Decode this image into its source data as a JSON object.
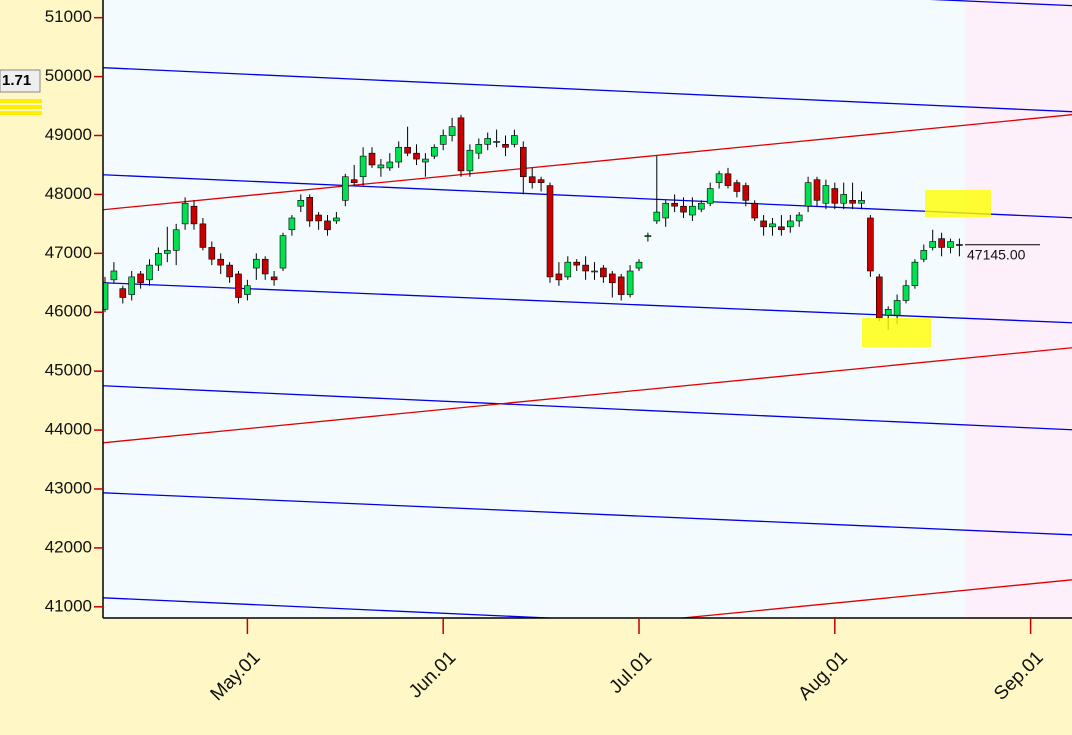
{
  "chart_data": {
    "type": "candlestick",
    "categories": [
      null,
      null,
      null,
      null,
      null,
      null,
      null,
      null,
      null,
      null,
      null,
      null,
      null,
      null,
      null,
      null,
      "May.01",
      null,
      null,
      null,
      null,
      null,
      null,
      null,
      null,
      null,
      null,
      null,
      null,
      null,
      null,
      null,
      null,
      null,
      null,
      null,
      null,
      null,
      "Jun.01",
      null,
      null,
      null,
      null,
      null,
      null,
      null,
      null,
      null,
      null,
      null,
      null,
      null,
      null,
      null,
      null,
      null,
      null,
      null,
      null,
      null,
      "Jul.01",
      null,
      null,
      null,
      null,
      null,
      null,
      null,
      null,
      null,
      null,
      null,
      null,
      null,
      null,
      null,
      null,
      null,
      null,
      null,
      null,
      null,
      "Aug.01",
      null,
      null,
      null,
      null,
      null,
      null,
      null,
      null,
      null,
      null,
      null,
      null,
      null,
      null,
      null,
      null,
      null,
      null,
      null,
      null,
      null,
      "Sep.01",
      null,
      null,
      null
    ],
    "open": [
      46050,
      46550,
      46400,
      46300,
      46650,
      46550,
      46800,
      47000,
      47050,
      47500,
      47800,
      47500,
      47100,
      46900,
      46800,
      46650,
      46300,
      46750,
      46900,
      46600,
      46750,
      47400,
      47800,
      47950,
      47650,
      47550,
      47550,
      47900,
      48250,
      48300,
      48700,
      48450,
      48450,
      48550,
      48800,
      48700,
      48550,
      48650,
      48850,
      49000,
      49300,
      48400,
      48700,
      48850,
      48900,
      48850,
      48850,
      48800,
      48300,
      48250,
      48150,
      46650,
      46600,
      46850,
      46800,
      46700,
      46750,
      46650,
      46600,
      46300,
      46750,
      47300,
      47550,
      47600,
      47850,
      47800,
      47650,
      47750,
      47850,
      48200,
      48350,
      48200,
      48150,
      47850,
      47550,
      47450,
      47450,
      47450,
      47550,
      47800,
      48250,
      47850,
      48100,
      47850,
      47900,
      47850,
      47600,
      46600,
      45950,
      45950,
      46200,
      46450,
      46900,
      47100,
      47250,
      47100,
      47150,
      null,
      null,
      null,
      null,
      null,
      null,
      null,
      null,
      null,
      null,
      null
    ],
    "high": [
      46600,
      46850,
      46450,
      46700,
      46700,
      46900,
      47100,
      47450,
      47500,
      47950,
      47900,
      47600,
      47200,
      47000,
      46850,
      46700,
      46550,
      47000,
      46950,
      46700,
      47350,
      47650,
      48000,
      48000,
      47700,
      47650,
      47700,
      48350,
      48500,
      48800,
      48800,
      48600,
      48700,
      48900,
      49150,
      48850,
      48700,
      48850,
      49100,
      49300,
      49350,
      48850,
      48950,
      49050,
      49100,
      49000,
      49100,
      48900,
      48450,
      48300,
      48200,
      46850,
      46950,
      46900,
      46950,
      46850,
      46800,
      46700,
      46650,
      46800,
      46900,
      47350,
      48650,
      47900,
      48000,
      47950,
      47950,
      47900,
      48200,
      48400,
      48450,
      48250,
      48200,
      47900,
      47650,
      47600,
      47650,
      47650,
      47700,
      48300,
      48300,
      48250,
      48200,
      48200,
      48200,
      48050,
      47650,
      46650,
      46100,
      46300,
      46550,
      46900,
      47150,
      47400,
      47350,
      47250,
      47250,
      null,
      null,
      null,
      null,
      null,
      null,
      null,
      null,
      null,
      null,
      null
    ],
    "low": [
      46000,
      46500,
      46150,
      46200,
      46400,
      46450,
      46700,
      46850,
      46800,
      47400,
      47400,
      47050,
      46800,
      46650,
      46500,
      46150,
      46200,
      46550,
      46550,
      46450,
      46700,
      47300,
      47700,
      47450,
      47400,
      47300,
      47500,
      47800,
      48150,
      48150,
      48450,
      48300,
      48400,
      48450,
      48650,
      48500,
      48300,
      48600,
      48750,
      48900,
      48300,
      48300,
      48600,
      48750,
      48800,
      48650,
      48800,
      48000,
      48100,
      48050,
      46500,
      46450,
      46550,
      46700,
      46550,
      46550,
      46500,
      46250,
      46200,
      46250,
      46700,
      47200,
      47500,
      47450,
      47700,
      47600,
      47550,
      47700,
      47800,
      48100,
      48100,
      47950,
      47800,
      47550,
      47300,
      47300,
      47300,
      47350,
      47450,
      47700,
      47800,
      47750,
      47750,
      47750,
      47750,
      47750,
      46600,
      45850,
      45700,
      45800,
      46150,
      46400,
      46850,
      47050,
      46950,
      47000,
      46950,
      null,
      null,
      null,
      null,
      null,
      null,
      null,
      null,
      null,
      null,
      null
    ],
    "close": [
      46500,
      46700,
      46250,
      46600,
      46500,
      46800,
      47000,
      47050,
      47400,
      47850,
      47500,
      47100,
      46900,
      46800,
      46600,
      46250,
      46450,
      46900,
      46650,
      46550,
      47300,
      47600,
      47900,
      47550,
      47550,
      47400,
      47600,
      48300,
      48200,
      48650,
      48500,
      48500,
      48550,
      48800,
      48700,
      48600,
      48600,
      48800,
      49000,
      49150,
      48400,
      48750,
      48850,
      48950,
      48900,
      48800,
      49000,
      48300,
      48200,
      48200,
      46600,
      46550,
      46850,
      46800,
      46700,
      46700,
      46600,
      46500,
      46300,
      46700,
      46850,
      47300,
      47700,
      47850,
      47800,
      47700,
      47800,
      47850,
      48100,
      48350,
      48150,
      48050,
      47900,
      47600,
      47450,
      47500,
      47400,
      47550,
      47650,
      48200,
      47900,
      48150,
      47850,
      48000,
      47850,
      47900,
      46700,
      45900,
      46050,
      46200,
      46450,
      46850,
      47050,
      47200,
      47100,
      47200,
      47145,
      null,
      null,
      null,
      null,
      null,
      null,
      null,
      null,
      null,
      null,
      null
    ],
    "up_color": "#00e050",
    "down_color": "#c80000",
    "ylim": [
      40810,
      51300
    ],
    "yticks": [
      41000,
      42000,
      43000,
      44000,
      45000,
      46000,
      47000,
      48000,
      49000,
      50000,
      51000
    ],
    "trendlines": [
      {
        "color": "#0000e0",
        "start": 51934,
        "end": 51204
      },
      {
        "color": "#0000e0",
        "start": 50151,
        "end": 49404
      },
      {
        "color": "#0000e0",
        "start": 48334,
        "end": 47604
      },
      {
        "color": "#0000e0",
        "start": 46501,
        "end": 45822
      },
      {
        "color": "#0000e0",
        "start": 44752,
        "end": 44005
      },
      {
        "color": "#0000e0",
        "start": 42935,
        "end": 42222
      },
      {
        "color": "#0000e0",
        "start": 41153,
        "end": 40406
      },
      {
        "color": "#e00000",
        "start": 47740,
        "end": 49353
      },
      {
        "color": "#e00000",
        "start": 43784,
        "end": 45397
      },
      {
        "color": "#e00000",
        "start": 39846,
        "end": 41458
      }
    ],
    "last_price": {
      "value": 47145,
      "label": "47145.00"
    },
    "side_label": "1.71"
  }
}
